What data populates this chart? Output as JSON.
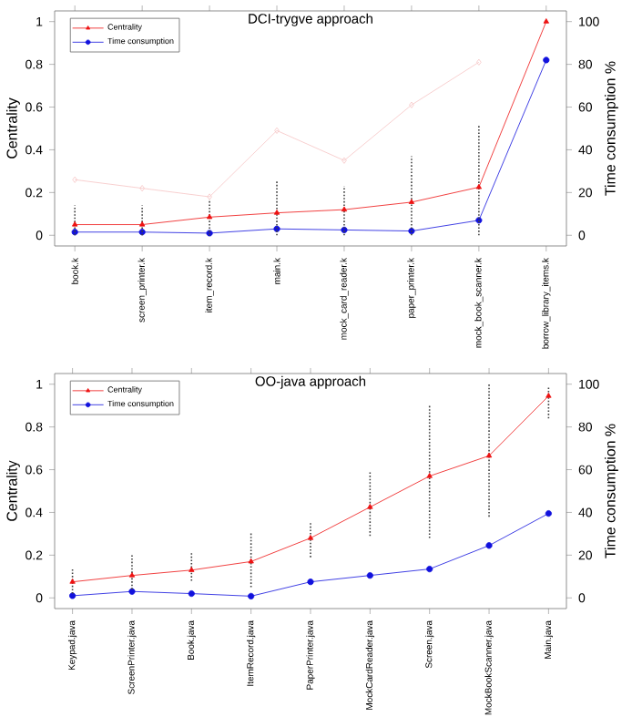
{
  "chart_data": [
    {
      "type": "line",
      "title": "DCI-trygve approach",
      "ylabel": "Centrality",
      "y2label": "Time consumption %",
      "categories": [
        "book.k",
        "screen_printer.k",
        "item_record.k",
        "main.k",
        "mock_card_reader.k",
        "paper_printer.k",
        "mock_book_scanner.k",
        "borrow_library_items.k"
      ],
      "series": [
        {
          "color": "#f6c4c4",
          "marker": "diamond",
          "values": [
            0.26,
            0.22,
            0.18,
            0.49,
            0.35,
            0.61,
            0.81,
            null
          ]
        },
        {
          "name": "Centrality",
          "color": "#ee1111",
          "marker": "triangle",
          "values": [
            0.05,
            0.05,
            0.085,
            0.105,
            0.12,
            0.155,
            0.225,
            1.0
          ],
          "errors": [
            [
              0,
              0.14
            ],
            [
              0,
              0.14
            ],
            [
              0,
              0.17
            ],
            [
              0,
              0.26
            ],
            [
              0,
              0.23
            ],
            [
              0,
              0.37
            ],
            [
              0,
              0.52
            ],
            null
          ]
        },
        {
          "name": "Time consumption",
          "color": "#1111dd",
          "marker": "circle",
          "axis": "y2",
          "values": [
            1.5,
            1.5,
            1,
            3,
            2.5,
            2,
            7,
            82
          ]
        }
      ],
      "ylim": [
        -0.05,
        1.05
      ],
      "yticks": [
        0,
        0.2,
        0.4,
        0.6,
        0.8,
        1
      ],
      "y2lim": [
        -5,
        105
      ],
      "y2ticks": [
        0,
        20,
        40,
        60,
        80,
        100
      ],
      "legend": "top left"
    },
    {
      "type": "line",
      "title": "OO-java approach",
      "ylabel": "Centrality",
      "y2label": "Time consumption %",
      "categories": [
        "Keypad.java",
        "ScreenPrinter.java",
        "Book.java",
        "ItemRecord.java",
        "PaperPrinter.java",
        "MockCardReader.java",
        "Screen.java",
        "MockBookScanner.java",
        "Main.java"
      ],
      "series": [
        {
          "name": "Centrality",
          "color": "#ee1111",
          "marker": "triangle",
          "values": [
            0.075,
            0.105,
            0.13,
            0.17,
            0.28,
            0.425,
            0.57,
            0.665,
            0.945
          ],
          "errors": [
            [
              0.02,
              0.14
            ],
            [
              0.04,
              0.2
            ],
            [
              0.08,
              0.21
            ],
            [
              0.05,
              0.31
            ],
            [
              0.19,
              0.35
            ],
            [
              0.29,
              0.59
            ],
            [
              0.28,
              0.9
            ],
            [
              0.38,
              1.0
            ],
            [
              0.84,
              0.99
            ]
          ]
        },
        {
          "name": "Time consumption",
          "color": "#1111dd",
          "marker": "circle",
          "axis": "y2",
          "values": [
            1,
            3,
            2,
            0.8,
            7.5,
            10.5,
            13.5,
            24.5,
            39.5
          ]
        }
      ],
      "ylim": [
        -0.05,
        1.05
      ],
      "yticks": [
        0,
        0.2,
        0.4,
        0.6,
        0.8,
        1
      ],
      "y2lim": [
        -5,
        105
      ],
      "y2ticks": [
        0,
        20,
        40,
        60,
        80,
        100
      ],
      "legend": "top left"
    }
  ]
}
